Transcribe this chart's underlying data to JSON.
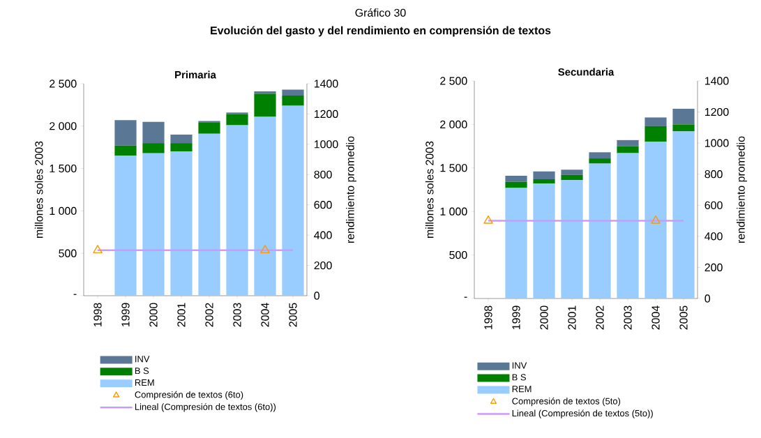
{
  "chart_data": [
    {
      "type": "bar",
      "title": "Primaria",
      "annotations": [
        "Gráfico 30",
        "Evolución del gasto y del rendimiento en comprensión de textos"
      ],
      "ylabel": "millones soles 2003",
      "y2label": "rendimiento promedio",
      "stacked": true,
      "legend": "bottom",
      "categories": [
        "1998",
        "1999",
        "2000",
        "2001",
        "2002",
        "2003",
        "2004",
        "2005"
      ],
      "ylim": [
        0,
        2500
      ],
      "yticks": [
        {
          "value": 0,
          "label": "-"
        },
        500,
        {
          "value": 1000,
          "label": "1 000"
        },
        {
          "value": 1500,
          "label": "1 500"
        },
        {
          "value": 2000,
          "label": "2 000"
        },
        {
          "value": 2500,
          "label": "2 500"
        }
      ],
      "y2lim": [
        0,
        1400
      ],
      "y2ticks": [
        0,
        200,
        400,
        600,
        800,
        1000,
        1200,
        1400
      ],
      "series": [
        {
          "name": "REM",
          "color": "#99ccff",
          "values": [
            null,
            1650,
            1680,
            1700,
            1910,
            2010,
            2110,
            2240
          ]
        },
        {
          "name": "B S",
          "color": "#008000",
          "values": [
            null,
            120,
            120,
            100,
            130,
            130,
            270,
            120
          ]
        },
        {
          "name": "INV",
          "color": "#5a7896",
          "values": [
            null,
            300,
            250,
            100,
            20,
            20,
            30,
            70
          ]
        },
        {
          "name": "Compresión de textos (6to)",
          "type": "scatter",
          "axis": "y2",
          "marker": "triangle",
          "color": "#ff9900",
          "values": [
            300,
            null,
            null,
            null,
            null,
            null,
            300,
            null
          ]
        },
        {
          "name": "Lineal (Compresión de textos (6to))",
          "type": "line",
          "axis": "y2",
          "marker": "none",
          "color": "#cc99ff",
          "values": [
            300,
            300,
            300,
            300,
            300,
            300,
            300,
            300
          ]
        }
      ]
    },
    {
      "type": "bar",
      "title": "Secundaria",
      "ylabel": "millones soles 2003",
      "y2label": "rendimiento promedio",
      "stacked": true,
      "legend": "bottom",
      "categories": [
        "1998",
        "1999",
        "2000",
        "2001",
        "2002",
        "2003",
        "2004",
        "2005"
      ],
      "ylim": [
        0,
        2500
      ],
      "yticks": [
        {
          "value": 0,
          "label": "-"
        },
        500,
        {
          "value": 1000,
          "label": "1 000"
        },
        {
          "value": 1500,
          "label": "1 500"
        },
        {
          "value": 2000,
          "label": "2 000"
        },
        {
          "value": 2500,
          "label": "2 500"
        }
      ],
      "y2lim": [
        0,
        1400
      ],
      "y2ticks": [
        0,
        200,
        400,
        600,
        800,
        1000,
        1200,
        1400
      ],
      "series": [
        {
          "name": "REM",
          "color": "#99ccff",
          "values": [
            null,
            1270,
            1320,
            1360,
            1550,
            1670,
            1800,
            1920
          ]
        },
        {
          "name": "B S",
          "color": "#008000",
          "values": [
            null,
            70,
            50,
            60,
            60,
            80,
            180,
            80
          ]
        },
        {
          "name": "INV",
          "color": "#5a7896",
          "values": [
            null,
            70,
            90,
            60,
            70,
            70,
            100,
            180
          ]
        },
        {
          "name": "Compresión de textos (5to)",
          "type": "scatter",
          "axis": "y2",
          "marker": "triangle",
          "color": "#ff9900",
          "values": [
            500,
            null,
            null,
            null,
            null,
            null,
            500,
            null
          ]
        },
        {
          "name": "Lineal (Compresión de textos (5to))",
          "type": "line",
          "axis": "y2",
          "marker": "none",
          "color": "#cc99ff",
          "values": [
            500,
            500,
            500,
            500,
            500,
            500,
            500,
            500
          ]
        }
      ]
    }
  ]
}
